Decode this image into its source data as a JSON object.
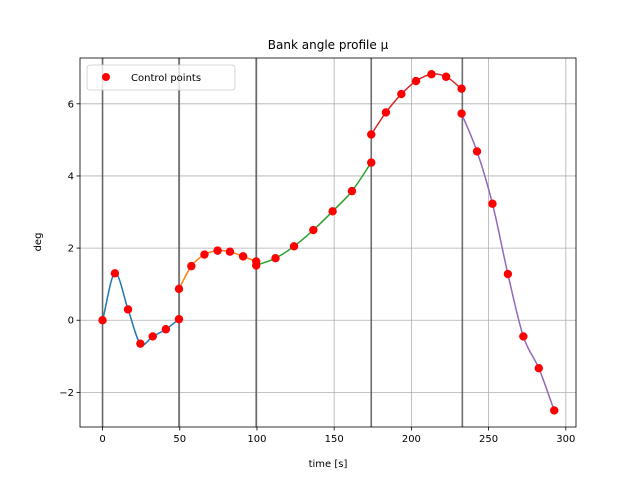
{
  "chart_data": {
    "type": "line",
    "title": "Bank angle profile μ",
    "xlabel": "time [s]",
    "ylabel": "deg",
    "xlim": [
      -14.6,
      306.6
    ],
    "ylim": [
      -2.96,
      7.27
    ],
    "xticks": [
      0,
      50,
      100,
      150,
      200,
      250,
      300
    ],
    "xtick_labels": [
      "0",
      "50",
      "100",
      "150",
      "200",
      "250",
      "300"
    ],
    "yticks": [
      -2,
      0,
      2,
      4,
      6
    ],
    "ytick_labels": [
      "−2",
      "0",
      "2",
      "4",
      "6"
    ],
    "grid": true,
    "legend": {
      "placement": "upper-left",
      "entries": [
        {
          "label": "Control points",
          "color": "#ff0000",
          "marker": "circle"
        }
      ]
    },
    "phase_boundaries": [
      0,
      49.5,
      99.5,
      174,
      233
    ],
    "segments": [
      {
        "color": "#1f77b4",
        "x": [
          0,
          8,
          16.5,
          24.5,
          32.5,
          41,
          49.5
        ],
        "y": [
          0.0,
          1.3,
          0.3,
          -0.65,
          -0.45,
          -0.25,
          0.03
        ]
      },
      {
        "color": "#ff7f0e",
        "x": [
          49.5,
          57.5,
          66,
          74.5,
          82.5,
          91,
          99.5
        ],
        "y": [
          0.87,
          1.5,
          1.82,
          1.93,
          1.9,
          1.77,
          1.63
        ]
      },
      {
        "color": "#2ca02c",
        "x": [
          99.5,
          112,
          124,
          136.5,
          149,
          161.5,
          174
        ],
        "y": [
          1.52,
          1.72,
          2.05,
          2.5,
          3.02,
          3.58,
          4.37
        ]
      },
      {
        "color": "#d62728",
        "x": [
          174,
          183.5,
          193.5,
          203,
          213,
          222.5,
          232.5
        ],
        "y": [
          5.15,
          5.76,
          6.27,
          6.63,
          6.82,
          6.75,
          6.42
        ]
      },
      {
        "color": "#9467bd",
        "x": [
          232.5,
          242.5,
          252.5,
          262.5,
          272.5,
          282.5,
          292.5
        ],
        "y": [
          5.73,
          4.68,
          3.23,
          1.28,
          -0.45,
          -1.33,
          -2.5
        ]
      }
    ],
    "control_points": {
      "color": "#ff0000",
      "x": [
        0,
        8,
        16.5,
        24.5,
        32.5,
        41,
        49.5,
        49.5,
        57.5,
        66,
        74.5,
        82.5,
        91,
        99.5,
        99.5,
        112,
        124,
        136.5,
        149,
        161.5,
        174,
        174,
        183.5,
        193.5,
        203,
        213,
        222.5,
        232.5,
        232.5,
        242.5,
        252.5,
        262.5,
        272.5,
        282.5,
        292.5
      ],
      "y": [
        0.0,
        1.3,
        0.3,
        -0.65,
        -0.45,
        -0.25,
        0.03,
        0.87,
        1.5,
        1.82,
        1.93,
        1.9,
        1.77,
        1.63,
        1.52,
        1.72,
        2.05,
        2.5,
        3.02,
        3.58,
        4.37,
        5.15,
        5.76,
        6.27,
        6.63,
        6.82,
        6.75,
        6.42,
        5.73,
        4.68,
        3.23,
        1.28,
        -0.45,
        -1.33,
        -2.5
      ]
    }
  }
}
